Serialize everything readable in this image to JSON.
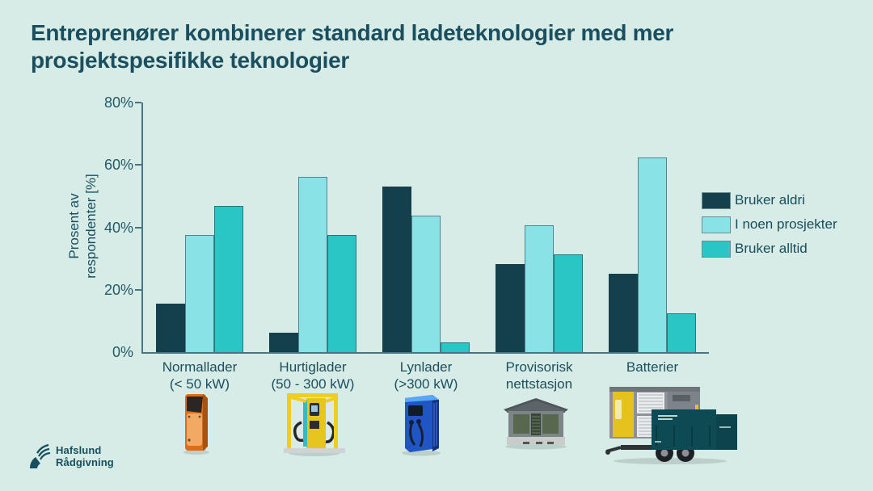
{
  "title": "Entreprenører kombinerer standard ladeteknologier med mer prosjektspesifikke teknologier",
  "colors": {
    "background": "#d8ece7",
    "title_text": "#1a4f5f",
    "axis": "#4a7482",
    "tick_text": "#235a66",
    "series_never": "#143f4d",
    "series_some": "#89e2e6",
    "series_always": "#2ac6c6",
    "logo_teal": "#164f5e"
  },
  "chart_data": {
    "type": "bar",
    "title": "Entreprenører kombinerer standard ladeteknologier med mer prosjektspesifikke teknologier",
    "xlabel": "",
    "ylabel": "Prosent av respondenter [%]",
    "ylabel_lines": [
      "Prosent av",
      "respondenter [%]"
    ],
    "ylim": [
      0,
      80
    ],
    "yticks": [
      0,
      20,
      40,
      60,
      80
    ],
    "ytick_labels": [
      "0%",
      "20%",
      "40%",
      "60%",
      "80%"
    ],
    "grid": false,
    "legend_position": "right",
    "categories": [
      "Normallader (< 50 kW)",
      "Hurtiglader (50 - 300 kW)",
      "Lynlader (>300 kW)",
      "Provisorisk nettstasjon",
      "Batterier"
    ],
    "category_lines": [
      [
        "Normallader",
        "(< 50 kW)"
      ],
      [
        "Hurtiglader",
        "(50 - 300 kW)"
      ],
      [
        "Lynlader",
        "(>300 kW)"
      ],
      [
        "Provisorisk",
        "nettstasjon"
      ],
      [
        "Batterier"
      ]
    ],
    "series": [
      {
        "name": "Bruker aldri",
        "color": "#143f4d",
        "values": [
          15.6,
          6.3,
          53.1,
          28.1,
          25.0
        ]
      },
      {
        "name": "I noen prosjekter",
        "color": "#89e2e6",
        "values": [
          37.5,
          56.3,
          43.8,
          40.6,
          62.5
        ]
      },
      {
        "name": "Bruker alltid",
        "color": "#2ac6c6",
        "values": [
          46.9,
          37.5,
          3.1,
          31.3,
          12.5
        ]
      }
    ]
  },
  "equipment": [
    {
      "name": "normallader-photo",
      "desc": "Oransje vegghengt normallader"
    },
    {
      "name": "hurtiglader-photo",
      "desc": "Gul hurtiglader med beskyttelsesramme"
    },
    {
      "name": "lynlader-photo",
      "desc": "Blått lynlader-kabinett"
    },
    {
      "name": "nettstasjon-photo",
      "desc": "Provisorisk nettstasjon"
    },
    {
      "name": "batterier-photo",
      "desc": "Mobile batterikontainere på tilhenger"
    }
  ],
  "footer": {
    "logo_line1": "Hafslund",
    "logo_line2": "Rådgivning"
  }
}
